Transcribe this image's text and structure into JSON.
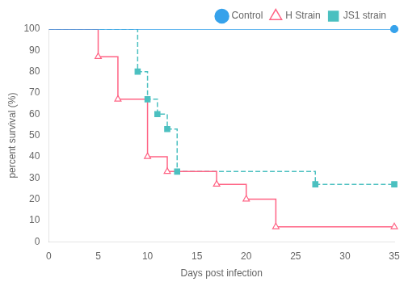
{
  "chart_data": {
    "type": "line",
    "xlabel": "Days post infection",
    "ylabel": "percent survival (%)",
    "xlim": [
      0,
      35
    ],
    "ylim": [
      0,
      100
    ],
    "xticks": [
      0,
      5,
      10,
      15,
      20,
      25,
      30,
      35
    ],
    "yticks": [
      0,
      10,
      20,
      30,
      40,
      50,
      60,
      70,
      80,
      90,
      100
    ],
    "grid": false,
    "legend": "upper right",
    "series": [
      {
        "name": "Control",
        "x": [
          0,
          35
        ],
        "values": [
          100,
          100
        ],
        "marker_x": [
          35
        ],
        "marker_y": [
          100
        ],
        "marker": "circle",
        "line_style": "solid"
      },
      {
        "name": "H Strain",
        "x": [
          0,
          5,
          5,
          7,
          7,
          10,
          10,
          12,
          12,
          17,
          17,
          20,
          20,
          23,
          23,
          35
        ],
        "values": [
          100,
          100,
          87,
          87,
          67,
          67,
          40,
          40,
          33,
          33,
          27,
          27,
          20,
          20,
          7,
          7
        ],
        "marker_x": [
          5,
          7,
          10,
          12,
          17,
          20,
          23,
          35
        ],
        "marker_y": [
          87,
          67,
          40,
          33,
          27,
          20,
          7,
          7
        ],
        "marker": "open triangle",
        "line_style": "solid"
      },
      {
        "name": "JS1 strain",
        "x": [
          0,
          9,
          9,
          10,
          10,
          11,
          11,
          12,
          12,
          13,
          13,
          27,
          27,
          35
        ],
        "values": [
          100,
          100,
          80,
          80,
          67,
          67,
          60,
          60,
          53,
          53,
          33,
          33,
          27,
          27
        ],
        "marker_x": [
          9,
          10,
          11,
          12,
          13,
          27,
          35
        ],
        "marker_y": [
          80,
          67,
          60,
          53,
          33,
          27,
          27
        ],
        "marker": "square",
        "line_style": "dashed"
      }
    ]
  }
}
